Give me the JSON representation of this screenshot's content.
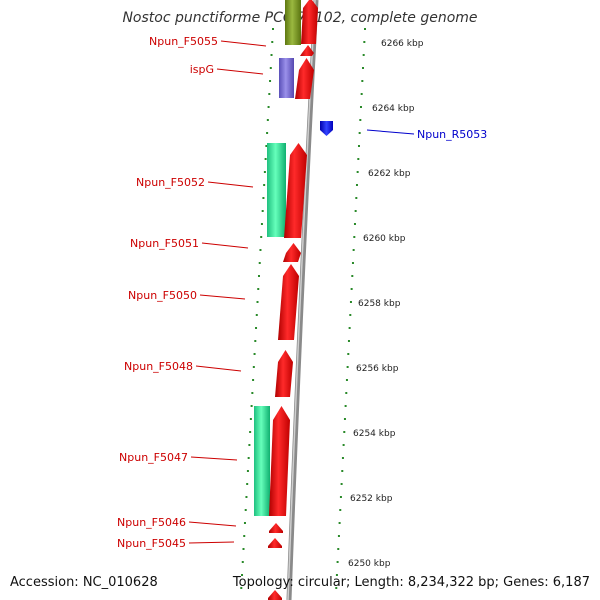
{
  "title": "Nostoc punctiforme PCC 73102, complete genome",
  "footer": {
    "accession": "Accession: NC_010628",
    "summary": "Topology: circular; Length: 8,234,322 bp; Genes: 6,187"
  },
  "map": {
    "scale_labels": [
      {
        "kbp": 6266,
        "text": "6266 kbp"
      },
      {
        "kbp": 6264,
        "text": "6264 kbp"
      },
      {
        "kbp": 6262,
        "text": "6262 kbp"
      },
      {
        "kbp": 6260,
        "text": "6260 kbp"
      },
      {
        "kbp": 6258,
        "text": "6258 kbp"
      },
      {
        "kbp": 6256,
        "text": "6256 kbp"
      },
      {
        "kbp": 6254,
        "text": "6254 kbp"
      },
      {
        "kbp": 6252,
        "text": "6252 kbp"
      },
      {
        "kbp": 6250,
        "text": "6250 kbp"
      }
    ],
    "gene_labels": [
      {
        "text": "Npun_F5055",
        "color": "#cc0000"
      },
      {
        "text": "ispG",
        "color": "#cc0000"
      },
      {
        "text": "Npun_R5053",
        "color": "#0000cc"
      },
      {
        "text": "Npun_F5052",
        "color": "#cc0000"
      },
      {
        "text": "Npun_F5051",
        "color": "#cc0000"
      },
      {
        "text": "Npun_F5050",
        "color": "#cc0000"
      },
      {
        "text": "Npun_F5048",
        "color": "#cc0000"
      },
      {
        "text": "Npun_F5047",
        "color": "#cc0000"
      },
      {
        "text": "Npun_F5046",
        "color": "#cc0000"
      },
      {
        "text": "Npun_F5045",
        "color": "#cc0000"
      }
    ],
    "colors": {
      "forward_gene": "#ee0000",
      "reverse_gene": "#0000ee",
      "cog_green": "#00dd88",
      "cog_purple": "#7b6fd0",
      "cog_olive": "#7f9a22",
      "backbone": "#888888",
      "tick": "#2a8a2a"
    }
  }
}
